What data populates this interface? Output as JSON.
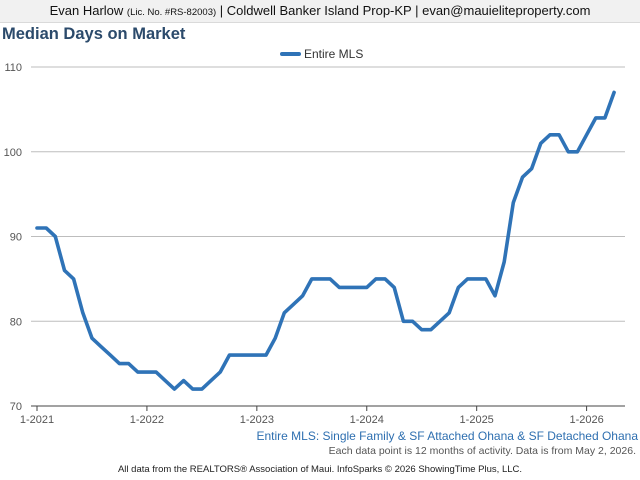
{
  "header": {
    "agent_name": "Evan Harlow",
    "license": "(Lic. No. #RS-82003)",
    "office_email": "| Coldwell Banker Island Prop-KP | evan@mauieliteproperty.com"
  },
  "chart_data": {
    "type": "line",
    "title": "Median Days on Market",
    "xlabel": "",
    "ylabel": "",
    "ylim": [
      70,
      110
    ],
    "yticks": [
      70,
      80,
      90,
      100,
      110
    ],
    "xticks": [
      "1-2021",
      "1-2022",
      "1-2023",
      "1-2024",
      "1-2025",
      "1-2026"
    ],
    "grid": true,
    "legend": "top-center",
    "series": [
      {
        "name": "Entire MLS",
        "color": "#2f73b7",
        "x": [
          "1-2021",
          "2-2021",
          "3-2021",
          "4-2021",
          "5-2021",
          "6-2021",
          "7-2021",
          "8-2021",
          "9-2021",
          "10-2021",
          "11-2021",
          "12-2021",
          "1-2022",
          "2-2022",
          "3-2022",
          "4-2022",
          "5-2022",
          "6-2022",
          "7-2022",
          "8-2022",
          "9-2022",
          "10-2022",
          "11-2022",
          "12-2022",
          "1-2023",
          "2-2023",
          "3-2023",
          "4-2023",
          "5-2023",
          "6-2023",
          "7-2023",
          "8-2023",
          "9-2023",
          "10-2023",
          "11-2023",
          "12-2023",
          "1-2024",
          "2-2024",
          "3-2024",
          "4-2024",
          "5-2024",
          "6-2024",
          "7-2024",
          "8-2024",
          "9-2024",
          "10-2024",
          "11-2024",
          "12-2024",
          "1-2025",
          "2-2025",
          "3-2025",
          "4-2025",
          "5-2025",
          "6-2025",
          "7-2025",
          "8-2025",
          "9-2025",
          "10-2025",
          "11-2025",
          "12-2025",
          "1-2026",
          "2-2026",
          "3-2026",
          "4-2026"
        ],
        "values": [
          91,
          91,
          90,
          86,
          85,
          81,
          78,
          77,
          76,
          75,
          75,
          74,
          74,
          74,
          73,
          72,
          73,
          72,
          72,
          73,
          74,
          76,
          76,
          76,
          76,
          76,
          78,
          81,
          82,
          83,
          85,
          85,
          85,
          84,
          84,
          84,
          84,
          85,
          85,
          84,
          80,
          80,
          79,
          79,
          80,
          81,
          84,
          85,
          85,
          85,
          83,
          87,
          94,
          97,
          98,
          101,
          102,
          102,
          100,
          100,
          102,
          104,
          104,
          107
        ]
      }
    ]
  },
  "footnotes": {
    "line1": "Entire MLS: Single Family & SF Attached Ohana & SF Detached Ohana",
    "line2": "Each data point is 12 months of activity. Data is from May 2, 2026."
  },
  "footer": "All data from the REALTORS® Association of Maui. InfoSparks © 2026 ShowingTime Plus, LLC."
}
